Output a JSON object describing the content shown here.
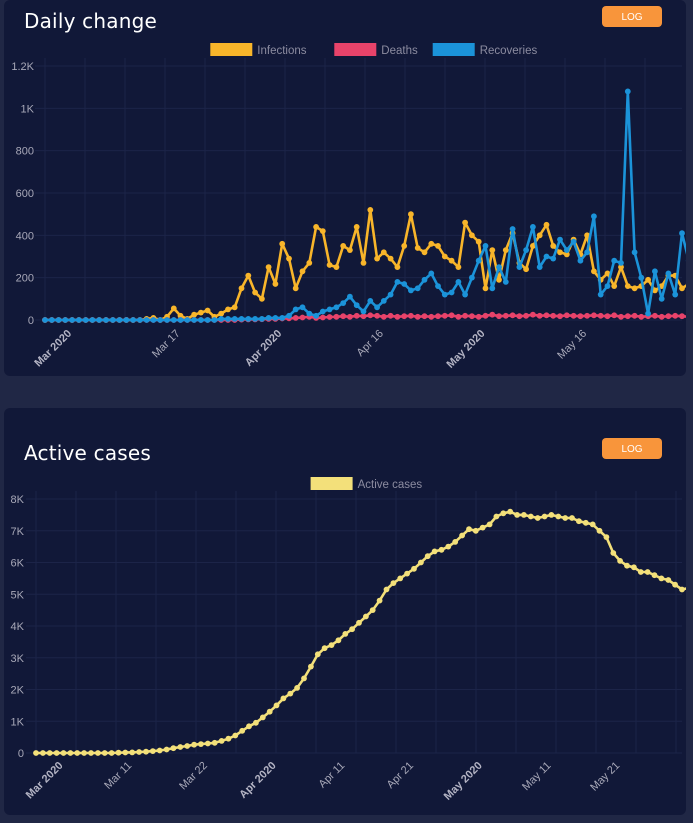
{
  "colors": {
    "background": "#202745",
    "card": "#111838",
    "grid": "#1c2448",
    "axis_text": "#a8a8b8",
    "button": "#f8953b",
    "infections": "#f8b52a",
    "deaths": "#e8436a",
    "recoveries": "#1b93d9",
    "active": "#f3e07a"
  },
  "daily": {
    "title": "Daily change",
    "log_label": "LOG"
  },
  "active": {
    "title": "Active cases",
    "log_label": "LOG"
  },
  "chart_data": [
    {
      "type": "line",
      "title": "Daily change",
      "x_start": "2020-02-26",
      "x_end": "2020-05-30",
      "x_ticks": [
        {
          "date": "2020-03-01",
          "label": "Mar 2020",
          "bold": true
        },
        {
          "date": "2020-03-17",
          "label": "Mar 17",
          "bold": false
        },
        {
          "date": "2020-04-01",
          "label": "Apr 2020",
          "bold": true
        },
        {
          "date": "2020-04-16",
          "label": "Apr 16",
          "bold": false
        },
        {
          "date": "2020-05-01",
          "label": "May 2020",
          "bold": true
        },
        {
          "date": "2020-05-16",
          "label": "May 16",
          "bold": false
        }
      ],
      "ylim": [
        0,
        1200
      ],
      "y_ticks": [
        {
          "value": 0,
          "label": "0"
        },
        {
          "value": 200,
          "label": "200"
        },
        {
          "value": 400,
          "label": "400"
        },
        {
          "value": 600,
          "label": "600"
        },
        {
          "value": 800,
          "label": "800"
        },
        {
          "value": 1000,
          "label": "1K"
        },
        {
          "value": 1200,
          "label": "1.2K"
        }
      ],
      "grid": true,
      "legend_position": "top-center",
      "series": [
        {
          "name": "Infections",
          "color_key": "infections",
          "values": [
            0,
            0,
            0,
            0,
            0,
            0,
            0,
            0,
            0,
            0,
            0,
            0,
            0,
            0,
            0,
            5,
            10,
            0,
            15,
            55,
            20,
            5,
            25,
            35,
            45,
            15,
            30,
            50,
            60,
            150,
            210,
            130,
            100,
            250,
            170,
            360,
            290,
            150,
            230,
            270,
            440,
            420,
            260,
            250,
            350,
            330,
            440,
            270,
            520,
            290,
            320,
            290,
            250,
            350,
            500,
            340,
            320,
            360,
            350,
            300,
            280,
            250,
            460,
            400,
            370,
            150,
            330,
            190,
            330,
            410,
            270,
            240,
            350,
            400,
            450,
            350,
            320,
            310,
            380,
            310,
            400,
            230,
            190,
            220,
            160,
            250,
            160,
            150,
            160,
            190,
            140,
            160,
            210,
            210,
            150,
            170
          ]
        },
        {
          "name": "Deaths",
          "color_key": "deaths",
          "values": [
            0,
            0,
            0,
            0,
            0,
            0,
            0,
            0,
            0,
            0,
            0,
            0,
            0,
            0,
            0,
            0,
            0,
            0,
            0,
            0,
            0,
            0,
            0,
            0,
            0,
            0,
            0,
            0,
            0,
            2,
            3,
            3,
            4,
            5,
            5,
            7,
            8,
            10,
            12,
            15,
            10,
            12,
            14,
            15,
            18,
            15,
            20,
            18,
            22,
            20,
            15,
            20,
            15,
            18,
            20,
            15,
            18,
            15,
            18,
            20,
            22,
            15,
            20,
            18,
            15,
            20,
            25,
            18,
            20,
            22,
            18,
            20,
            25,
            20,
            22,
            20,
            18,
            22,
            20,
            18,
            20,
            22,
            20,
            18,
            22,
            15,
            18,
            20,
            15,
            18,
            20,
            15,
            18,
            20,
            18,
            15
          ]
        },
        {
          "name": "Recoveries",
          "color_key": "recoveries",
          "values": [
            0,
            0,
            0,
            0,
            0,
            0,
            0,
            0,
            0,
            0,
            0,
            0,
            0,
            0,
            0,
            0,
            0,
            0,
            0,
            0,
            0,
            0,
            0,
            0,
            0,
            0,
            5,
            5,
            5,
            5,
            5,
            5,
            5,
            10,
            10,
            10,
            20,
            50,
            60,
            30,
            20,
            40,
            50,
            60,
            80,
            110,
            70,
            40,
            90,
            60,
            90,
            120,
            180,
            170,
            140,
            150,
            190,
            220,
            160,
            120,
            130,
            180,
            120,
            200,
            280,
            350,
            150,
            250,
            180,
            430,
            250,
            330,
            440,
            250,
            300,
            290,
            380,
            330,
            370,
            280,
            320,
            490,
            120,
            160,
            280,
            270,
            1080,
            320,
            200,
            30,
            230,
            100,
            220,
            120,
            410,
            280
          ]
        }
      ]
    },
    {
      "type": "line",
      "title": "Active cases",
      "x_start": "2020-02-26",
      "x_end": "2020-05-30",
      "x_ticks": [
        {
          "date": "2020-03-01",
          "label": "Mar 2020",
          "bold": true
        },
        {
          "date": "2020-03-11",
          "label": "Mar 11",
          "bold": false
        },
        {
          "date": "2020-03-22",
          "label": "Mar 22",
          "bold": false
        },
        {
          "date": "2020-04-01",
          "label": "Apr 2020",
          "bold": true
        },
        {
          "date": "2020-04-11",
          "label": "Apr 11",
          "bold": false
        },
        {
          "date": "2020-04-21",
          "label": "Apr 21",
          "bold": false
        },
        {
          "date": "2020-05-01",
          "label": "May 2020",
          "bold": true
        },
        {
          "date": "2020-05-11",
          "label": "May 11",
          "bold": false
        },
        {
          "date": "2020-05-21",
          "label": "May 21",
          "bold": false
        }
      ],
      "ylim": [
        0,
        8000
      ],
      "y_ticks": [
        {
          "value": 0,
          "label": "0"
        },
        {
          "value": 1000,
          "label": "1K"
        },
        {
          "value": 2000,
          "label": "2K"
        },
        {
          "value": 3000,
          "label": "3K"
        },
        {
          "value": 4000,
          "label": "4K"
        },
        {
          "value": 5000,
          "label": "5K"
        },
        {
          "value": 6000,
          "label": "6K"
        },
        {
          "value": 7000,
          "label": "7K"
        },
        {
          "value": 8000,
          "label": "8K"
        }
      ],
      "grid": true,
      "legend_position": "top-center",
      "series": [
        {
          "name": "Active cases",
          "color_key": "active",
          "values": [
            0,
            0,
            0,
            0,
            0,
            0,
            0,
            0,
            0,
            0,
            0,
            0,
            10,
            15,
            20,
            30,
            40,
            60,
            80,
            110,
            150,
            190,
            220,
            260,
            280,
            300,
            320,
            380,
            450,
            550,
            700,
            840,
            950,
            1120,
            1300,
            1500,
            1720,
            1870,
            2050,
            2350,
            2720,
            3110,
            3300,
            3400,
            3550,
            3750,
            3900,
            4100,
            4300,
            4500,
            4800,
            5150,
            5350,
            5500,
            5650,
            5800,
            6000,
            6200,
            6350,
            6400,
            6500,
            6650,
            6850,
            7050,
            7000,
            7100,
            7200,
            7450,
            7550,
            7600,
            7500,
            7500,
            7450,
            7400,
            7450,
            7500,
            7450,
            7400,
            7400,
            7300,
            7250,
            7200,
            7000,
            6800,
            6300,
            6050,
            5900,
            5850,
            5700,
            5700,
            5600,
            5500,
            5450,
            5300,
            5150,
            5200
          ]
        }
      ]
    }
  ]
}
